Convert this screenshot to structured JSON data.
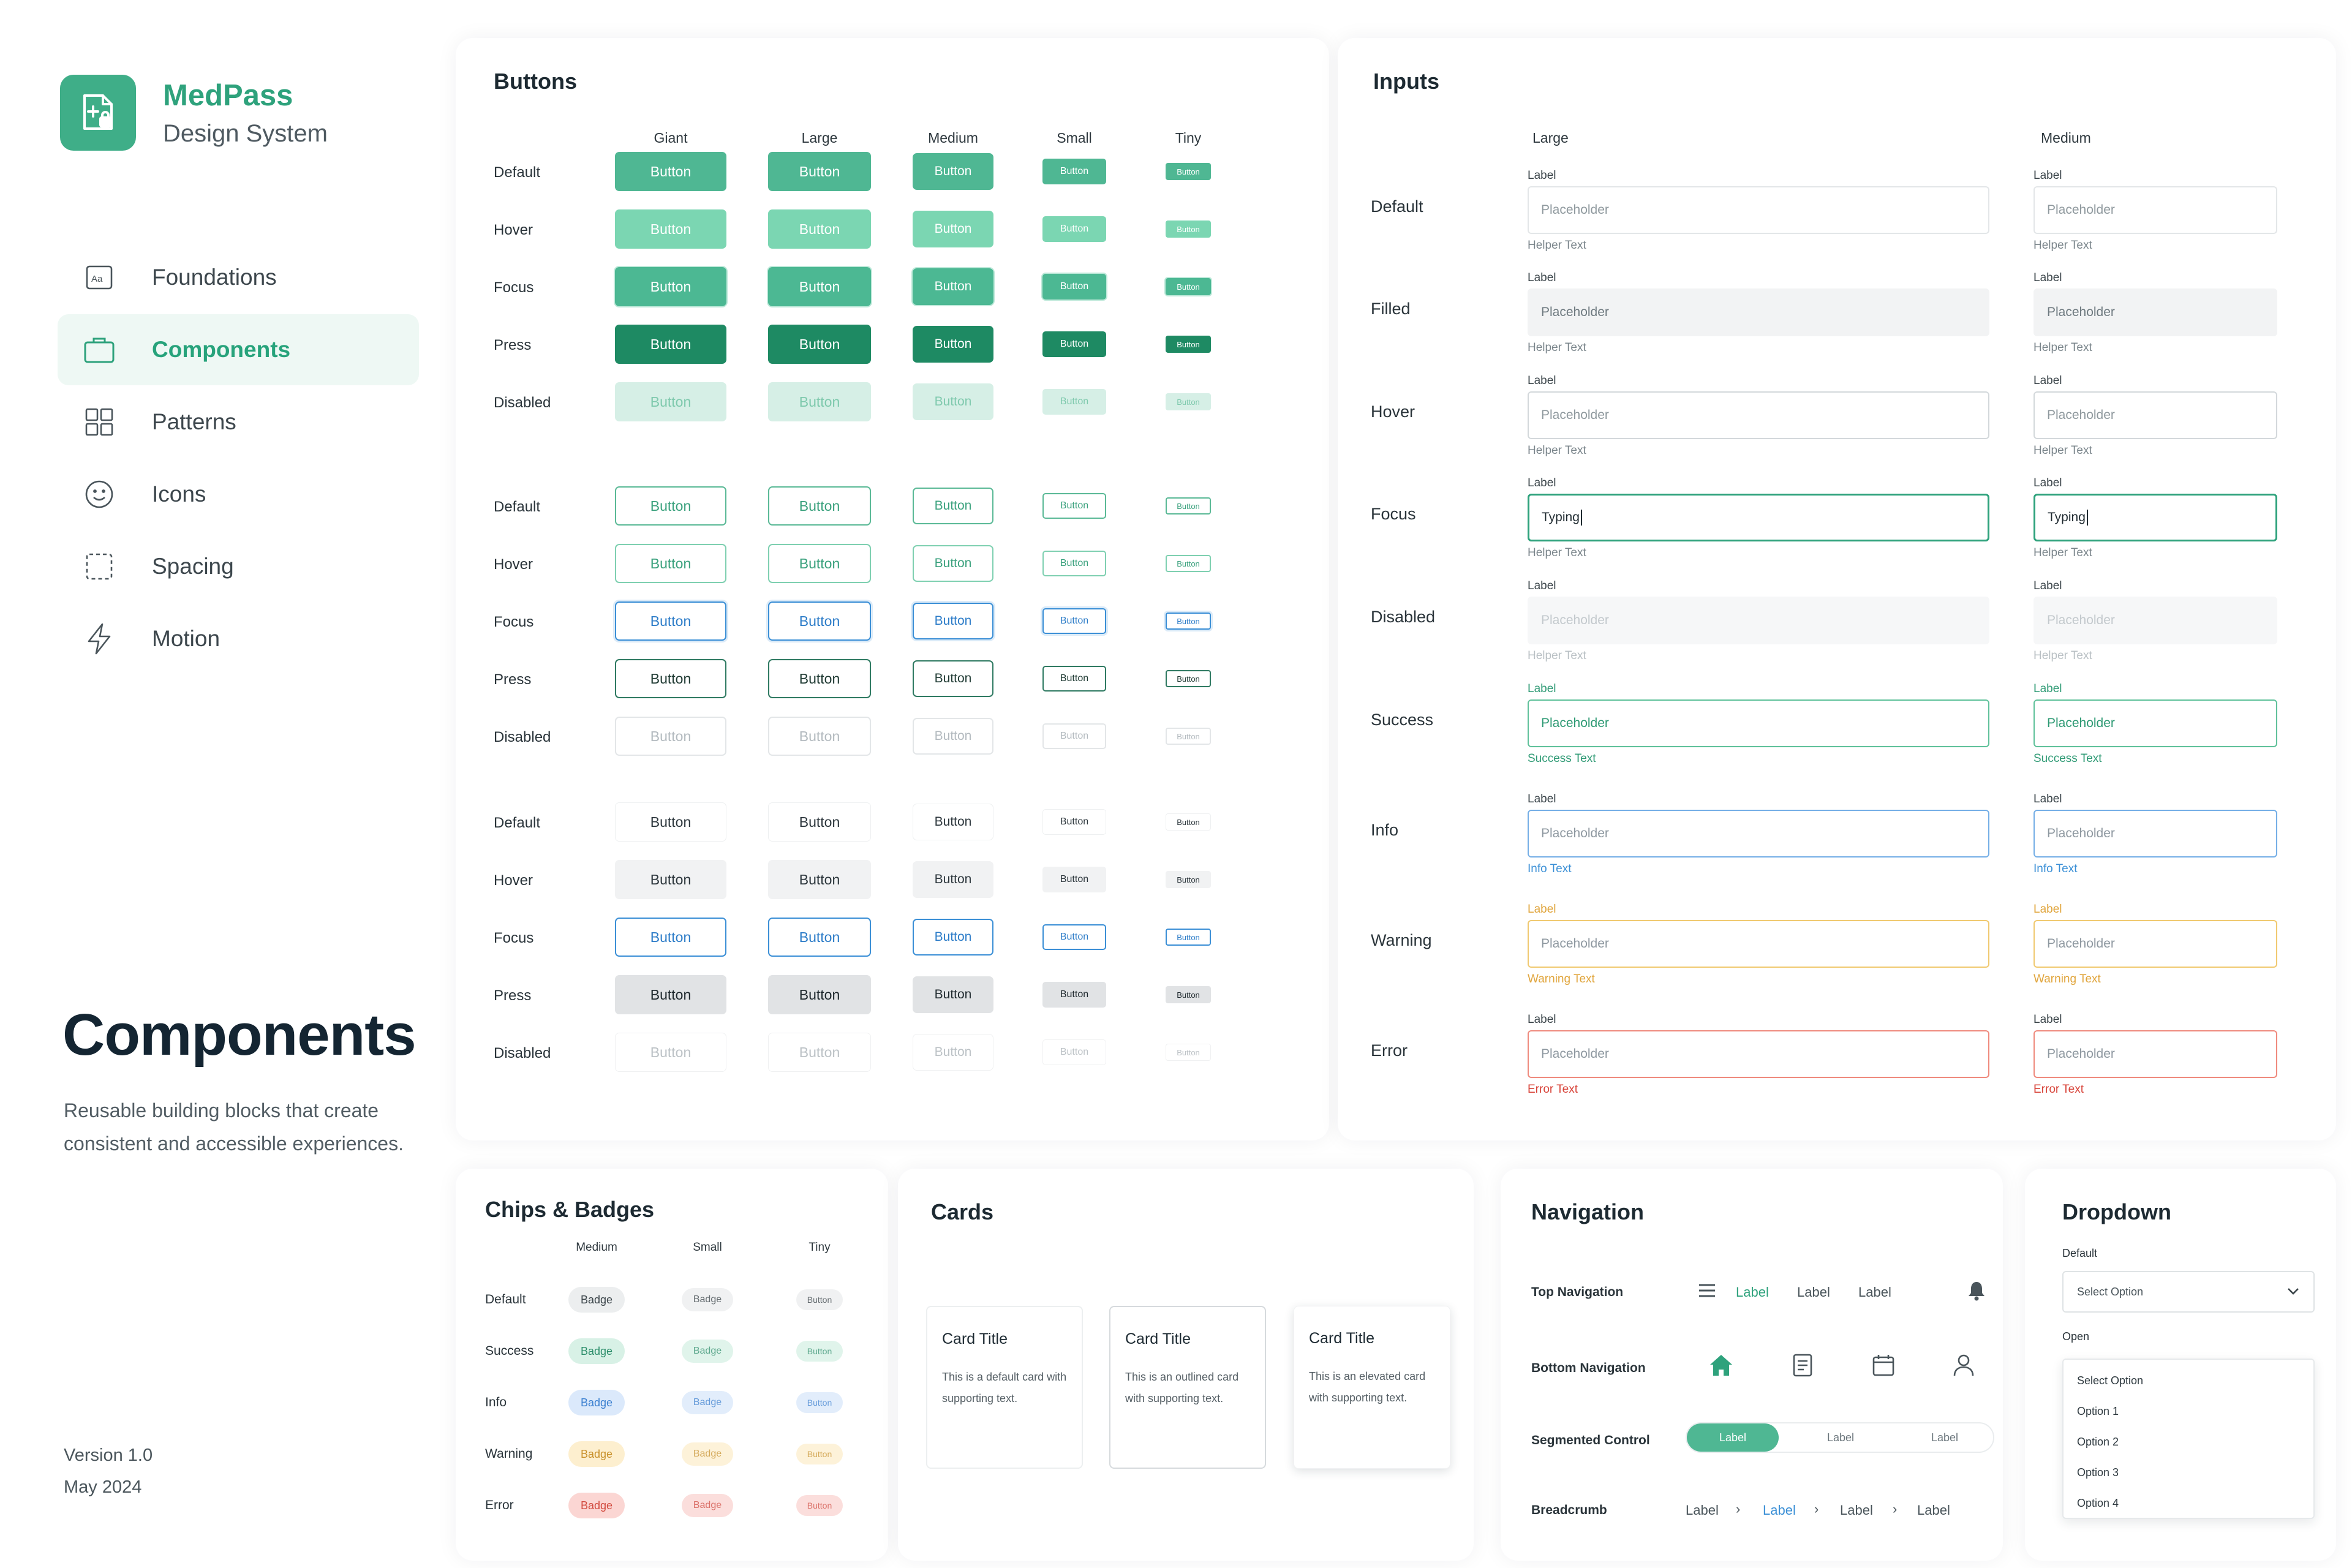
{
  "brand": {
    "name": "MedPass",
    "subtitle": "Design System"
  },
  "sidebar": {
    "items": [
      {
        "label": "Foundations",
        "icon": "typography-icon"
      },
      {
        "label": "Components",
        "icon": "briefcase-icon",
        "active": true
      },
      {
        "label": "Patterns",
        "icon": "grid-icon"
      },
      {
        "label": "Icons",
        "icon": "smiley-icon"
      },
      {
        "label": "Spacing",
        "icon": "dashed-square-icon"
      },
      {
        "label": "Motion",
        "icon": "lightning-icon"
      }
    ]
  },
  "page": {
    "title": "Components",
    "description": "Reusable building blocks that create consistent and accessible experiences.",
    "version": "Version 1.0",
    "date": "May 2024"
  },
  "buttons": {
    "title": "Buttons",
    "columns": [
      "Giant",
      "Large",
      "Medium",
      "Small",
      "Tiny"
    ],
    "states": [
      "Default",
      "Hover",
      "Focus",
      "Press",
      "Disabled"
    ],
    "label": "Button"
  },
  "inputs": {
    "title": "Inputs",
    "columns": [
      "Large",
      "Medium"
    ],
    "states": [
      "Default",
      "Filled",
      "Hover",
      "Focus",
      "Disabled",
      "Success",
      "Info",
      "Warning",
      "Error"
    ],
    "field_label": "Label",
    "placeholder": "Placeholder",
    "typing_value": "Typing",
    "helper_text": "Helper Text",
    "success_text": "Success Text",
    "info_text": "Info Text",
    "warning_text": "Warning Text",
    "error_text": "Error Text"
  },
  "chips": {
    "title": "Chips & Badges",
    "columns": [
      "Medium",
      "Small",
      "Tiny"
    ],
    "states": [
      "Default",
      "Success",
      "Info",
      "Warning",
      "Error"
    ],
    "badge_label": "Badge",
    "tiny_label": "Button"
  },
  "cards": {
    "title": "Cards",
    "items": [
      {
        "title": "Card Title",
        "body": "This is a default card with supporting text."
      },
      {
        "title": "Card Title",
        "body": "This is an outlined card with supporting text."
      },
      {
        "title": "Card Title",
        "body": "This is an elevated card with supporting text."
      }
    ]
  },
  "navigation": {
    "title": "Navigation",
    "top_nav_label": "Top Navigation",
    "top_nav_items": [
      "Label",
      "Label",
      "Label"
    ],
    "bottom_nav_label": "Bottom Navigation",
    "segmented_label": "Segmented Control",
    "segmented_items": [
      "Label",
      "Label",
      "Label"
    ],
    "breadcrumb_label": "Breadcrumb",
    "breadcrumb_items": [
      "Label",
      "Label",
      "Label",
      "Label"
    ]
  },
  "dropdown": {
    "title": "Dropdown",
    "default_label": "Default",
    "open_label": "Open",
    "selected": "Select Option",
    "options": [
      "Select Option",
      "Option 1",
      "Option 2",
      "Option 3",
      "Option 4"
    ]
  },
  "colors": {
    "brand_green": "#2ea27c",
    "primary": "#4fb793",
    "focus_blue": "#3b8fd6",
    "warning": "#f0c970",
    "error": "#ef8a7d"
  }
}
